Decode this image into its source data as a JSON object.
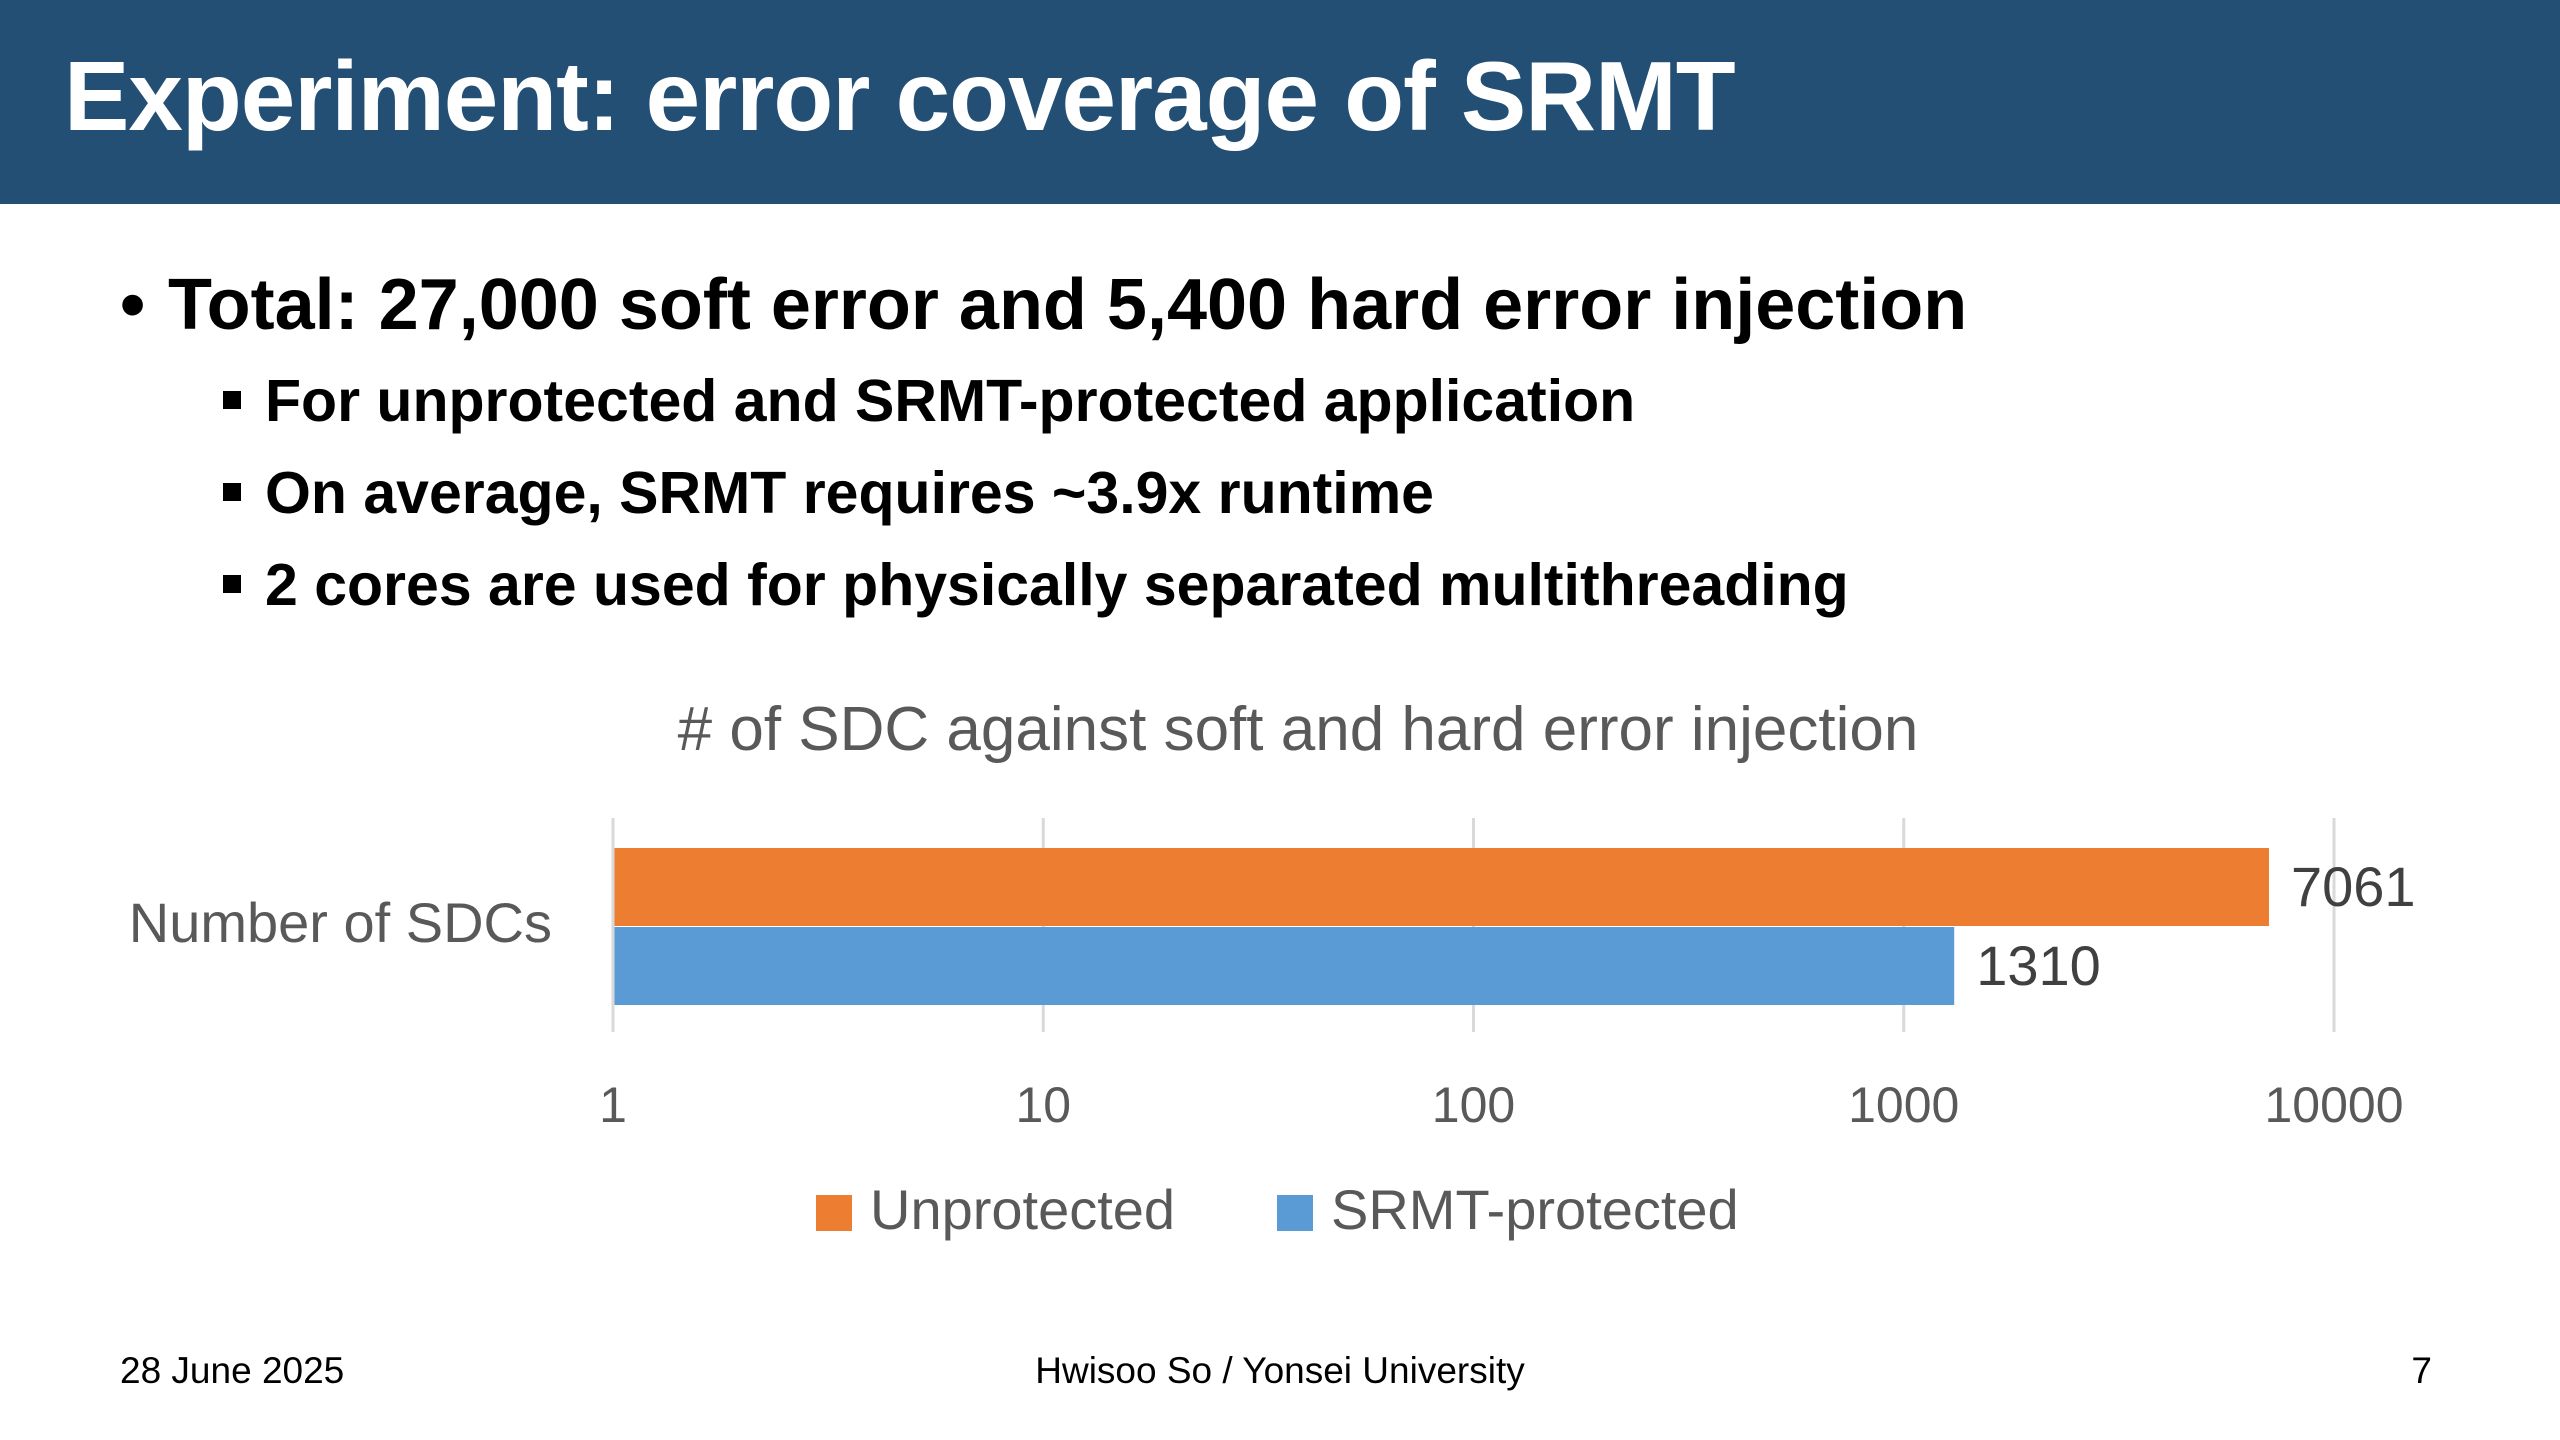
{
  "slide": {
    "title": "Experiment: error coverage of SRMT",
    "bullets": {
      "main": "Total: 27,000 soft error and 5,400 hard error injection",
      "sub": [
        "For unprotected and SRMT-protected application",
        "On average, SRMT requires ~3.9x runtime",
        "2 cores are used for physically separated multithreading"
      ]
    },
    "footer": {
      "date": "28 June 2025",
      "author": "Hwisoo So / Yonsei University",
      "page": "7"
    }
  },
  "chart_data": {
    "type": "bar",
    "orientation": "horizontal",
    "title": "# of SDC against soft and hard error injection",
    "categories": [
      "Number of SDCs"
    ],
    "series": [
      {
        "name": "Unprotected",
        "values": [
          7061
        ],
        "color": "#ed7d31"
      },
      {
        "name": "SRMT-protected",
        "values": [
          1310
        ],
        "color": "#5b9bd5"
      }
    ],
    "xscale": "log",
    "xlim": [
      1,
      10000
    ],
    "xticks": [
      "1",
      "10",
      "100",
      "1000",
      "10000"
    ],
    "data_labels": [
      "7061",
      "1310"
    ],
    "legend": "bottom",
    "grid": true
  }
}
